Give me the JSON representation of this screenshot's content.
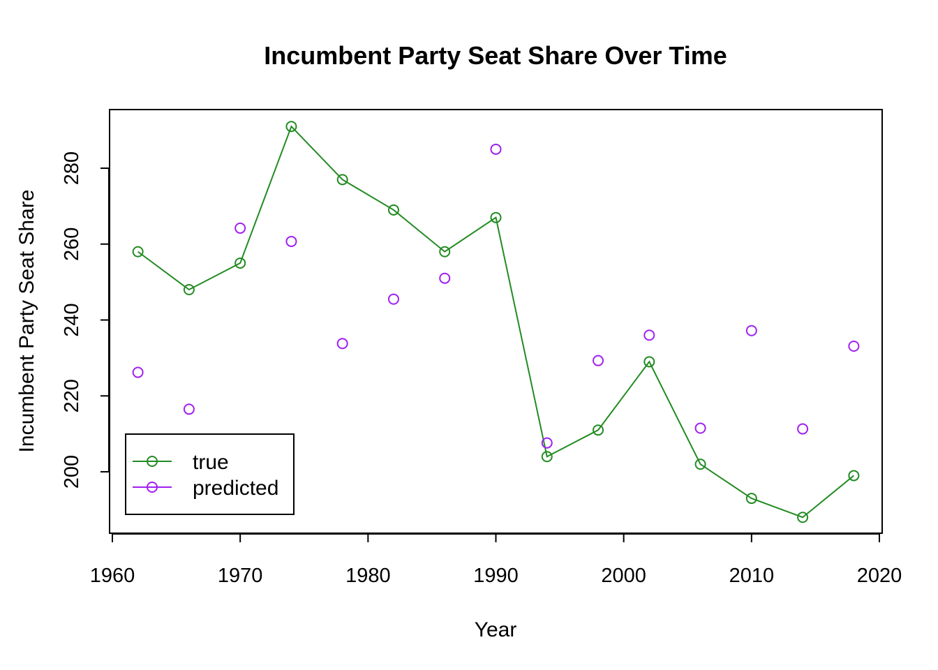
{
  "chart_data": {
    "type": "line",
    "title": "Incumbent Party Seat Share Over Time",
    "xlabel": "Year",
    "ylabel": "Incumbent Party Seat Share",
    "xlim": [
      1960,
      2020
    ],
    "ylim": [
      185,
      295
    ],
    "xticks": [
      1960,
      1970,
      1980,
      1990,
      2000,
      2010,
      2020
    ],
    "yticks": [
      200,
      220,
      240,
      260,
      280
    ],
    "x": [
      1962,
      1966,
      1970,
      1974,
      1978,
      1982,
      1986,
      1990,
      1994,
      1998,
      2002,
      2006,
      2010,
      2014,
      2018
    ],
    "series": [
      {
        "name": "true",
        "color": "#228b22",
        "style": "line+points",
        "values": [
          258,
          248,
          255,
          291,
          277,
          269,
          258,
          267,
          204,
          211,
          229,
          202,
          193,
          188,
          199
        ]
      },
      {
        "name": "predicted",
        "color": "#a020f0",
        "style": "points",
        "values": [
          226.2,
          216.5,
          264.2,
          260.7,
          233.8,
          245.5,
          251,
          285,
          207.6,
          229.3,
          236,
          211.5,
          237.2,
          211.3,
          233.1
        ]
      }
    ],
    "legend_position": "bottom-left",
    "grid": false
  }
}
